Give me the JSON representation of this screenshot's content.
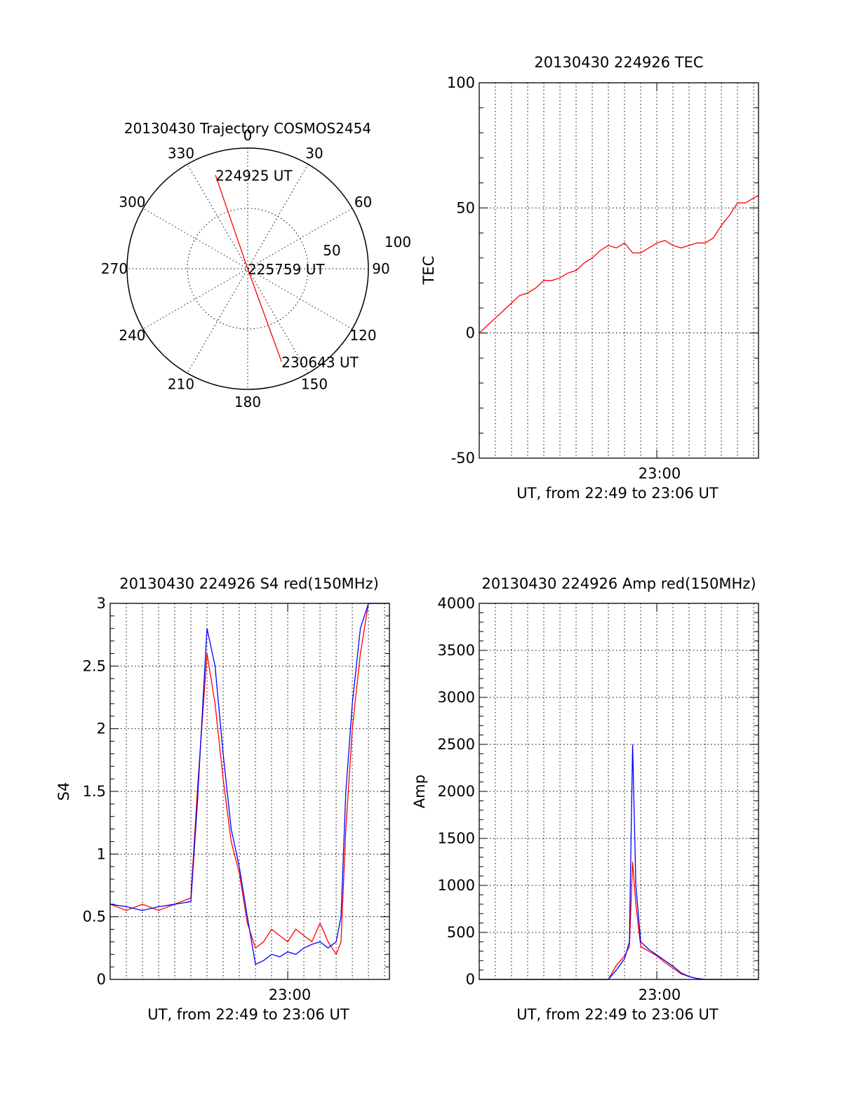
{
  "colors": {
    "red_series": "#ff0000",
    "blue_series": "#0000ff",
    "axes": "#000000"
  },
  "chart_data": [
    {
      "id": "trajectory",
      "type": "polar",
      "title": "20130430 Trajectory COSMOS2454",
      "angle_labels": [
        "0",
        "30",
        "60",
        "90",
        "120",
        "150",
        "180",
        "210",
        "240",
        "270",
        "300",
        "330"
      ],
      "radius_labels": [
        "50",
        "100"
      ],
      "radius_range": [
        0,
        100
      ],
      "grid": true,
      "points": [
        {
          "label": "224925 UT",
          "azimuth_deg": 341,
          "radius": 82
        },
        {
          "label": "225759 UT",
          "azimuth_deg": 0,
          "radius": 0
        },
        {
          "label": "230643 UT",
          "azimuth_deg": 160,
          "radius": 82
        }
      ]
    },
    {
      "id": "tec",
      "type": "line",
      "title": "20130430 224926 TEC",
      "xlabel": "UT, from 22:49 to 23:06 UT",
      "ylabel": "TEC",
      "x_tick_label": "23:00",
      "x_range_min": [
        0,
        17.3
      ],
      "x_tick_at_min": 11,
      "yticks": [
        "100",
        "50",
        "0",
        "-50"
      ],
      "ylim": [
        -50,
        100
      ],
      "grid": true,
      "series": [
        {
          "color": "#ff0000",
          "x": [
            0,
            0.5,
            1,
            1.5,
            2,
            2.5,
            3,
            3.5,
            4,
            4.5,
            5,
            5.5,
            6,
            6.5,
            7,
            7.5,
            8,
            8.5,
            9,
            9.5,
            10,
            10.5,
            11,
            11.5,
            12,
            12.5,
            13,
            13.5,
            14,
            14.5,
            15,
            15.5,
            16,
            16.5,
            17,
            17.3
          ],
          "y": [
            0,
            3,
            6,
            9,
            12,
            15,
            16,
            18,
            21,
            21,
            22,
            24,
            25,
            28,
            30,
            33,
            35,
            34,
            36,
            32,
            32,
            34,
            36,
            37,
            35,
            34,
            35,
            36,
            36,
            38,
            43,
            47,
            52,
            52,
            54,
            55
          ]
        }
      ]
    },
    {
      "id": "s4",
      "type": "line",
      "title": "20130430 224926 S4 red(150MHz)",
      "xlabel": "UT, from 22:49 to 23:06 UT",
      "ylabel": "S4",
      "x_tick_label": "23:00",
      "x_range_min": [
        0,
        17.3
      ],
      "x_tick_at_min": 11,
      "yticks": [
        "3",
        "2.5",
        "2",
        "1.5",
        "1",
        "0.5",
        "0"
      ],
      "ylim": [
        0,
        3
      ],
      "grid": true,
      "series": [
        {
          "color": "#ff0000",
          "x": [
            0,
            1,
            2,
            3,
            4,
            5,
            5.4,
            6,
            6.5,
            7,
            7.5,
            8,
            8.5,
            9,
            9.5,
            10,
            10.5,
            11,
            11.5,
            12,
            12.5,
            13,
            13.5,
            14,
            14.3,
            14.6,
            15,
            15.5,
            16,
            16.5,
            17,
            17.3
          ],
          "y": [
            0.6,
            0.55,
            0.6,
            0.55,
            0.6,
            0.65,
            1.5,
            2.6,
            2.2,
            1.6,
            1.1,
            0.85,
            0.45,
            0.25,
            0.3,
            0.4,
            0.35,
            0.3,
            0.4,
            0.35,
            0.3,
            0.45,
            0.3,
            0.2,
            0.3,
            1.2,
            2.0,
            2.6,
            3.0,
            3.0,
            3.0,
            3.0
          ]
        },
        {
          "color": "#0000ff",
          "x": [
            0,
            1,
            2,
            3,
            4,
            5,
            5.4,
            6,
            6.5,
            7,
            7.5,
            8,
            8.5,
            9,
            9.5,
            10,
            10.5,
            11,
            11.5,
            12,
            12.5,
            13,
            13.5,
            14,
            14.3,
            14.6,
            15,
            15.5,
            16,
            16.5,
            17,
            17.3
          ],
          "y": [
            0.6,
            0.58,
            0.55,
            0.58,
            0.6,
            0.62,
            1.4,
            2.8,
            2.5,
            1.8,
            1.2,
            0.9,
            0.5,
            0.12,
            0.15,
            0.2,
            0.18,
            0.22,
            0.2,
            0.25,
            0.28,
            0.3,
            0.25,
            0.3,
            0.5,
            1.5,
            2.2,
            2.8,
            3.0,
            3.0,
            3.0,
            3.0
          ]
        }
      ]
    },
    {
      "id": "amp",
      "type": "line",
      "title": "20130430 224926 Amp red(150MHz)",
      "xlabel": "UT, from 22:49 to 23:06 UT",
      "ylabel": "Amp",
      "x_tick_label": "23:00",
      "x_range_min": [
        0,
        17.3
      ],
      "x_tick_at_min": 11,
      "yticks": [
        "4000",
        "3500",
        "3000",
        "2500",
        "2000",
        "1500",
        "1000",
        "500",
        "0"
      ],
      "ylim": [
        0,
        4000
      ],
      "grid": true,
      "series": [
        {
          "color": "#ff0000",
          "x": [
            0,
            4,
            8,
            8.5,
            9,
            9.3,
            9.5,
            9.7,
            10,
            10.5,
            11,
            11.5,
            12,
            12.5,
            13,
            13.5,
            14,
            17.3
          ],
          "y": [
            0,
            0,
            0,
            150,
            250,
            350,
            1250,
            800,
            350,
            300,
            250,
            180,
            120,
            60,
            30,
            10,
            0,
            0
          ]
        },
        {
          "color": "#0000ff",
          "x": [
            0,
            4,
            8,
            8.5,
            9,
            9.3,
            9.5,
            9.7,
            10,
            10.5,
            11,
            11.5,
            12,
            12.5,
            13,
            13.5,
            14,
            17.3
          ],
          "y": [
            0,
            0,
            0,
            100,
            220,
            400,
            2500,
            1000,
            400,
            320,
            260,
            200,
            140,
            70,
            30,
            10,
            0,
            0
          ]
        }
      ]
    }
  ]
}
